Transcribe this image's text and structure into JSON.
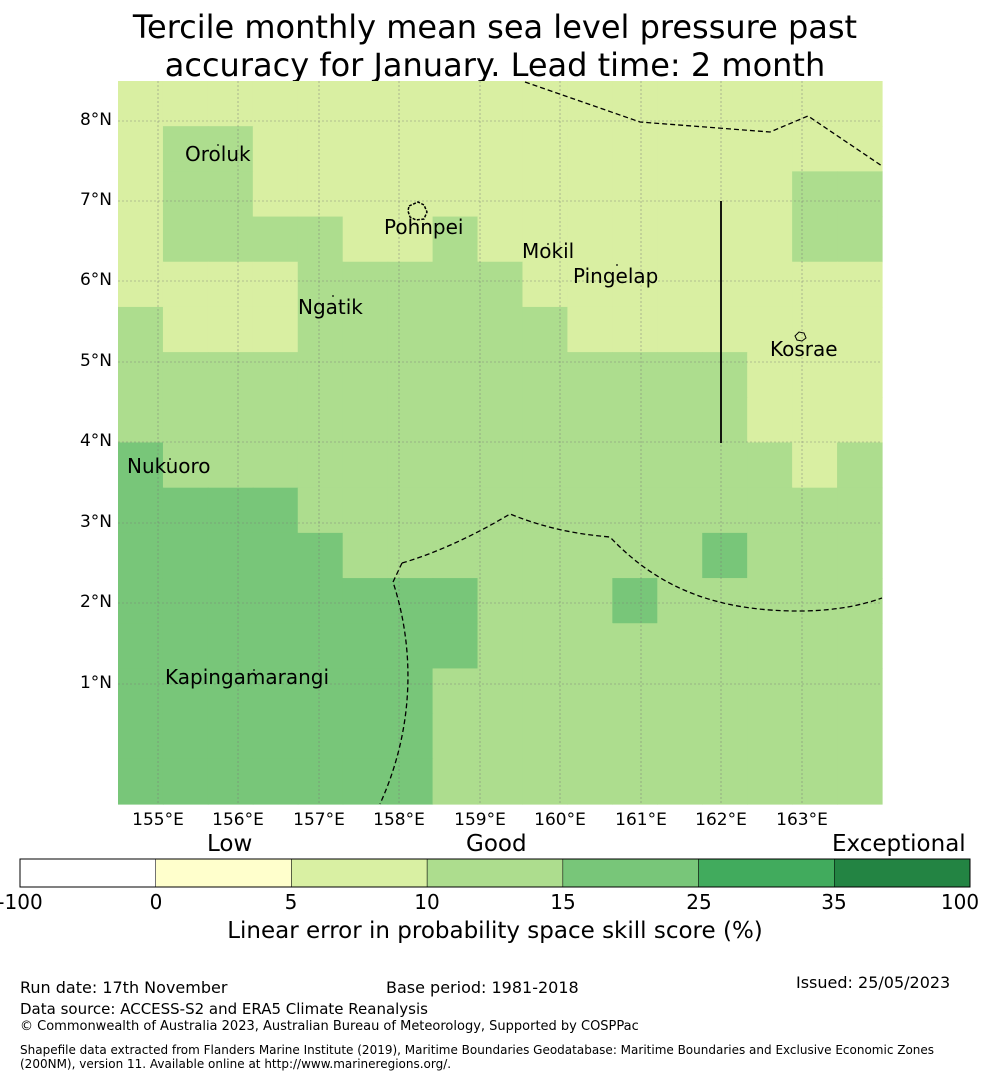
{
  "title": {
    "line1": "Tercile monthly mean sea level pressure past",
    "line2": "accuracy for January. Lead time: 2 month"
  },
  "map": {
    "lat_labels": [
      "8°N",
      "7°N",
      "6°N",
      "5°N",
      "4°N",
      "3°N",
      "2°N",
      "1°N"
    ],
    "lon_labels": [
      "155°E",
      "156°E",
      "157°E",
      "158°E",
      "159°E",
      "160°E",
      "161°E",
      "162°E",
      "163°E"
    ],
    "places": [
      "Oroluk",
      "Pohnpei",
      "Mokil",
      "Pingelap",
      "Ngatik",
      "Kosrae",
      "Nukuoro",
      "Kapingamarangi"
    ],
    "colors": {
      "light_yellow_green": "#d9efa2",
      "light_green": "#addd8e",
      "medium_green": "#78c679",
      "boundary": "#000000",
      "grid": "#777777"
    }
  },
  "colorbar": {
    "categories": {
      "low": "Low",
      "good": "Good",
      "exceptional": "Exceptional"
    },
    "ticks": [
      "-100",
      "0",
      "5",
      "10",
      "15",
      "25",
      "35",
      "100"
    ],
    "colors": [
      "#ffffff",
      "#ffffcc",
      "#d9f0a3",
      "#addd8e",
      "#78c679",
      "#41ab5d",
      "#238443"
    ],
    "label": "Linear error in probability space skill score (%)"
  },
  "footer": {
    "run_date": "Run date: 17th November",
    "base_period": "Base period: 1981-2018",
    "issued": "Issued: 25/05/2023",
    "data_source": "Data source: ACCESS-S2 and ERA5 Climate Reanalysis",
    "copyright": "© Commonwealth of Australia 2023, Australian Bureau of Meteorology, Supported by COSPPac",
    "shapefile": "Shapefile data extracted from Flanders Marine Institute (2019), Maritime Boundaries Geodatabase: Maritime Boundaries and Exclusive Economic Zones (200NM), version 11. Available online at http://www.marineregions.org/."
  }
}
